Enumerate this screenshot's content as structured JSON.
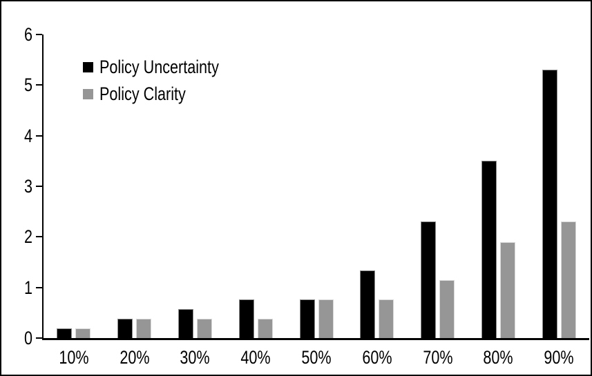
{
  "chart_data": {
    "type": "bar",
    "title": "",
    "xlabel": "",
    "ylabel": "",
    "categories": [
      "10%",
      "20%",
      "30%",
      "40%",
      "50%",
      "60%",
      "70%",
      "80%",
      "90%"
    ],
    "series": [
      {
        "name": "Policy Uncertainty",
        "color": "#000000",
        "border_color": "#8c8c8c",
        "values": [
          0.19,
          0.38,
          0.57,
          0.76,
          0.76,
          1.33,
          2.31,
          3.5,
          5.31
        ]
      },
      {
        "name": "Policy Clarity",
        "color": "#969696",
        "border_color": "#d9d9d9",
        "values": [
          0.19,
          0.38,
          0.38,
          0.38,
          0.76,
          0.76,
          1.14,
          1.9,
          2.3
        ]
      }
    ],
    "ylim": [
      0,
      6
    ],
    "yticks": [
      0,
      1,
      2,
      3,
      4,
      5,
      6
    ],
    "grid": false,
    "legend_position": "upper-left"
  },
  "frame": {
    "background": "#ffffff",
    "border_color": "#000000",
    "axis_color": "#000000",
    "text_color": "#000000"
  }
}
